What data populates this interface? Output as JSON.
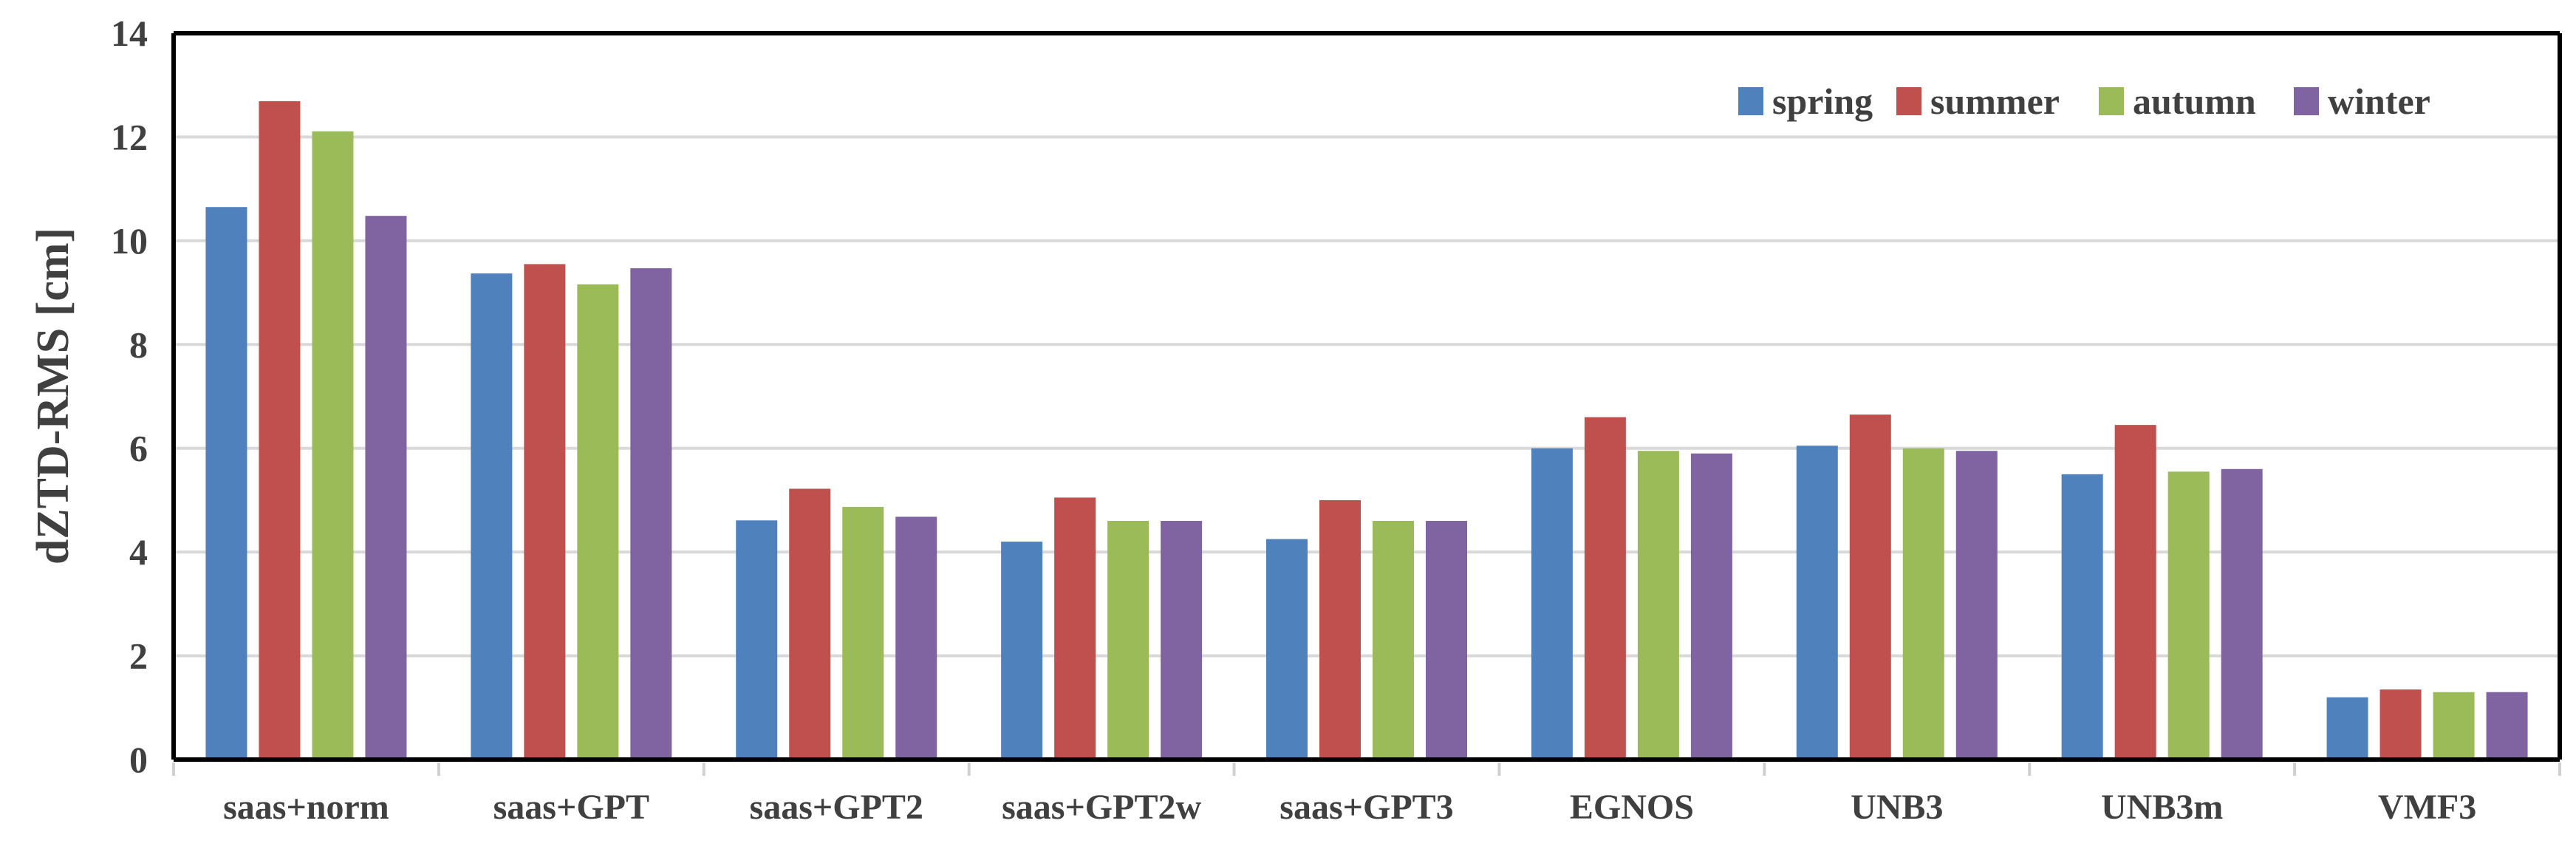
{
  "chart_data": {
    "type": "bar",
    "title": "",
    "xlabel": "",
    "ylabel": "dZTD-RMS [cm]",
    "ylim": [
      0,
      14
    ],
    "yticks": [
      0,
      2,
      4,
      6,
      8,
      10,
      12,
      14
    ],
    "grid": true,
    "legend_position": "top-right",
    "categories": [
      "saas+norm",
      "saas+GPT",
      "saas+GPT2",
      "saas+GPT2w",
      "saas+GPT3",
      "EGNOS",
      "UNB3",
      "UNB3m",
      "VMF3"
    ],
    "series": [
      {
        "name": "spring",
        "color": "#4F81BD",
        "values": [
          10.65,
          9.37,
          4.61,
          4.2,
          4.25,
          6.0,
          6.05,
          5.5,
          1.2
        ]
      },
      {
        "name": "summer",
        "color": "#C0504D",
        "values": [
          12.69,
          9.55,
          5.22,
          5.05,
          5.0,
          6.6,
          6.65,
          6.45,
          1.35
        ]
      },
      {
        "name": "autumn",
        "color": "#9BBB59",
        "values": [
          12.11,
          9.16,
          4.87,
          4.6,
          4.6,
          5.95,
          6.0,
          5.55,
          1.3
        ]
      },
      {
        "name": "winter",
        "color": "#8064A2",
        "values": [
          10.48,
          9.47,
          4.68,
          4.6,
          4.6,
          5.9,
          5.95,
          5.6,
          1.3
        ]
      }
    ]
  }
}
